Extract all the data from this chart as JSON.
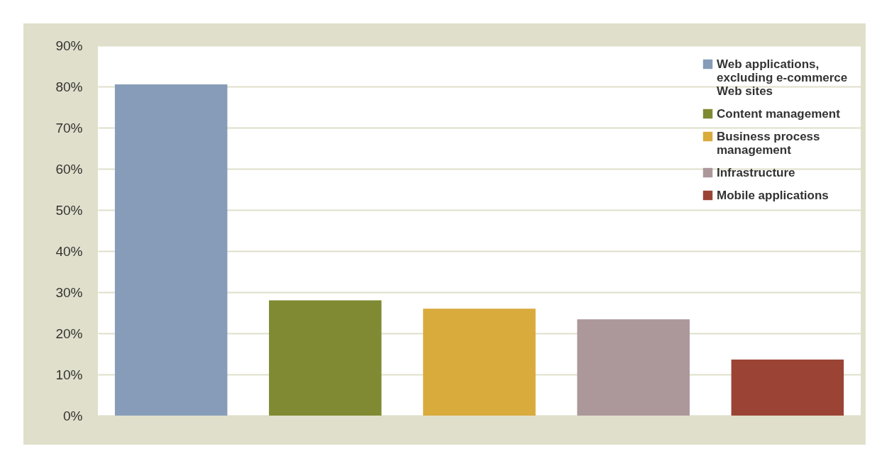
{
  "chart_data": {
    "type": "bar",
    "categories": [
      null,
      null,
      null,
      null,
      null
    ],
    "series": [
      {
        "name": "Web applications, excluding e-commerce Web sites",
        "color": "#869cb8",
        "values": [
          80.5,
          null,
          null,
          null,
          null
        ]
      },
      {
        "name": "Content management",
        "color": "#808a32",
        "values": [
          null,
          28,
          null,
          null,
          null
        ]
      },
      {
        "name": "Business process management",
        "color": "#d9aa3c",
        "values": [
          null,
          null,
          26,
          null,
          null
        ]
      },
      {
        "name": "Infrastructure",
        "color": "#ac979b",
        "values": [
          null,
          null,
          null,
          23.4,
          null
        ]
      },
      {
        "name": "Mobile applications",
        "color": "#9b4435",
        "values": [
          null,
          null,
          null,
          null,
          13.6
        ]
      }
    ],
    "ylim": [
      0,
      90
    ],
    "yticks": [
      {
        "value": 0,
        "label": "0%"
      },
      {
        "value": 10,
        "label": "10%"
      },
      {
        "value": 20,
        "label": "20%"
      },
      {
        "value": 30,
        "label": "30%"
      },
      {
        "value": 40,
        "label": "40%"
      },
      {
        "value": 50,
        "label": "50%"
      },
      {
        "value": 60,
        "label": "60%"
      },
      {
        "value": 70,
        "label": "70%"
      },
      {
        "value": 80,
        "label": "80%"
      },
      {
        "value": 90,
        "label": "90%"
      }
    ],
    "grid": "y",
    "legend": "top right",
    "tick_labels": "y"
  }
}
